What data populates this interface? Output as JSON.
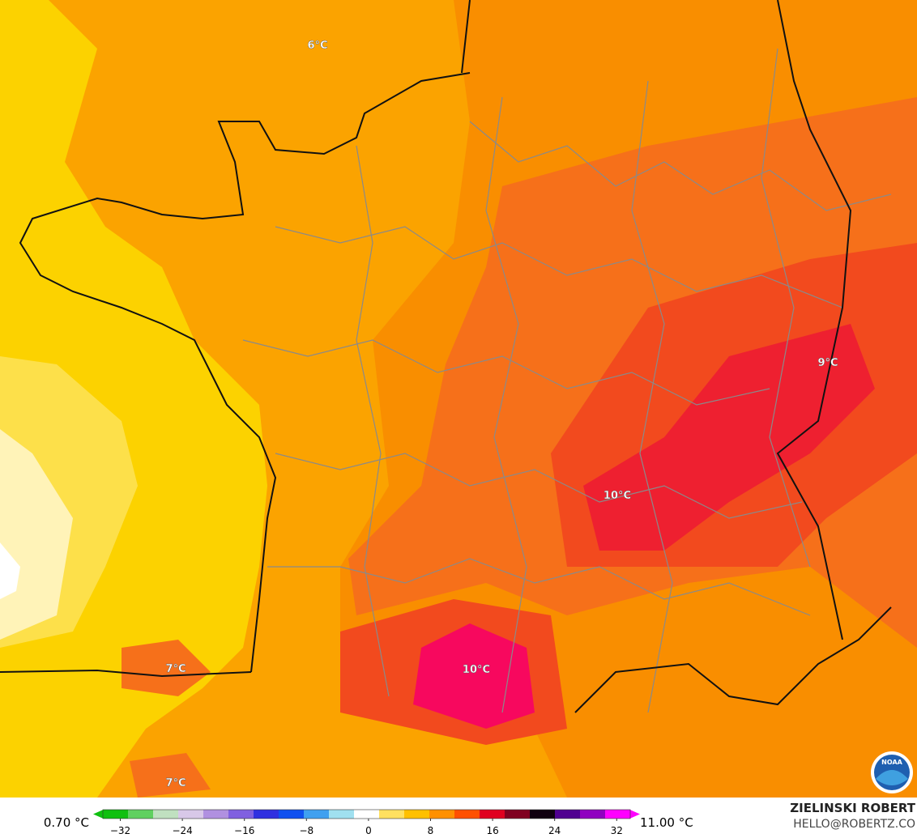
{
  "map": {
    "contour_labels": [
      "6°C",
      "9°C",
      "10°C",
      "10°C",
      "7°C",
      "7°C"
    ],
    "logo": "NOAA"
  },
  "legend": {
    "min_label": "0.70 °C",
    "max_label": "11.00 °C",
    "lim": [
      -35.5,
      35
    ],
    "ticks": [
      {
        "value": -32,
        "label": "−32"
      },
      {
        "value": -24,
        "label": "−24"
      },
      {
        "value": -16,
        "label": "−16"
      },
      {
        "value": -8,
        "label": "−8"
      },
      0,
      8,
      16,
      24,
      32
    ],
    "colors": [
      "#10c010",
      "#60d060",
      "#c0e0c0",
      "#d8c8e8",
      "#b090e0",
      "#8060e0",
      "#3030e0",
      "#1050f0",
      "#40a0f0",
      "#a0e0f0",
      "#ffffff",
      "#ffe060",
      "#ffc000",
      "#ff9000",
      "#ff5000",
      "#e00020",
      "#800020",
      "#100010",
      "#500090",
      "#9000c0",
      "#ff00ff"
    ]
  },
  "credit": {
    "name": "ZIELINSKI ROBERT",
    "email": "HELLO@ROBERTZ.CO"
  }
}
